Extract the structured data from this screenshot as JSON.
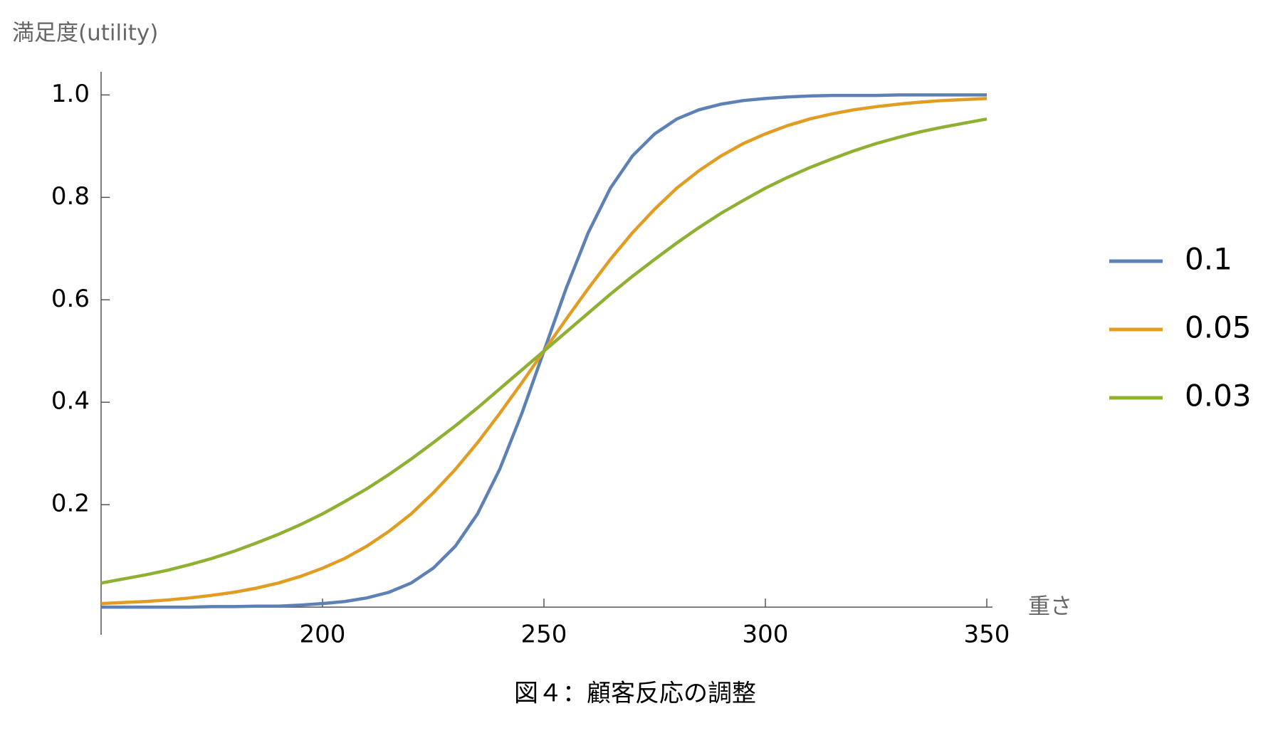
{
  "chart_data": {
    "type": "line",
    "y_label": "満足度(utility)",
    "x_label": "重さ",
    "caption": "図４：顧客反応の調整",
    "x": [
      150,
      155,
      160,
      165,
      170,
      175,
      180,
      185,
      190,
      195,
      200,
      205,
      210,
      215,
      220,
      225,
      230,
      235,
      240,
      245,
      250,
      255,
      260,
      265,
      270,
      275,
      280,
      285,
      290,
      295,
      300,
      305,
      310,
      315,
      320,
      325,
      330,
      335,
      340,
      345,
      350
    ],
    "series": [
      {
        "name": "0.1",
        "color": "#5e81b5",
        "values": [
          0.0,
          0.0,
          0.0,
          0.0,
          0.0,
          0.001,
          0.001,
          0.002,
          0.002,
          0.004,
          0.007,
          0.011,
          0.018,
          0.029,
          0.047,
          0.076,
          0.119,
          0.182,
          0.269,
          0.378,
          0.5,
          0.622,
          0.731,
          0.818,
          0.881,
          0.924,
          0.953,
          0.971,
          0.982,
          0.989,
          0.993,
          0.996,
          0.998,
          0.999,
          0.999,
          0.999,
          1.0,
          1.0,
          1.0,
          1.0,
          1.0
        ]
      },
      {
        "name": "0.05",
        "color": "#e19c24",
        "values": [
          0.007,
          0.009,
          0.011,
          0.014,
          0.018,
          0.023,
          0.029,
          0.037,
          0.047,
          0.06,
          0.076,
          0.095,
          0.119,
          0.148,
          0.182,
          0.223,
          0.269,
          0.321,
          0.378,
          0.438,
          0.5,
          0.562,
          0.622,
          0.679,
          0.731,
          0.777,
          0.818,
          0.852,
          0.881,
          0.905,
          0.924,
          0.94,
          0.953,
          0.963,
          0.971,
          0.977,
          0.982,
          0.986,
          0.989,
          0.991,
          0.993
        ]
      },
      {
        "name": "0.03",
        "color": "#8fb032",
        "values": [
          0.047,
          0.055,
          0.063,
          0.072,
          0.083,
          0.095,
          0.109,
          0.125,
          0.142,
          0.161,
          0.182,
          0.206,
          0.231,
          0.259,
          0.289,
          0.321,
          0.354,
          0.389,
          0.426,
          0.463,
          0.5,
          0.537,
          0.574,
          0.611,
          0.646,
          0.679,
          0.711,
          0.741,
          0.769,
          0.794,
          0.818,
          0.839,
          0.858,
          0.875,
          0.891,
          0.905,
          0.917,
          0.928,
          0.937,
          0.945,
          0.953
        ]
      }
    ],
    "xlim": [
      150,
      350
    ],
    "xticks": [
      200,
      250,
      300,
      350
    ],
    "ylim": [
      -0.054,
      1.045
    ],
    "yticks": [
      0.2,
      0.4,
      0.6,
      0.8,
      {
        "value": 1,
        "label": "1.0"
      }
    ],
    "legend": "right",
    "grid": false
  }
}
